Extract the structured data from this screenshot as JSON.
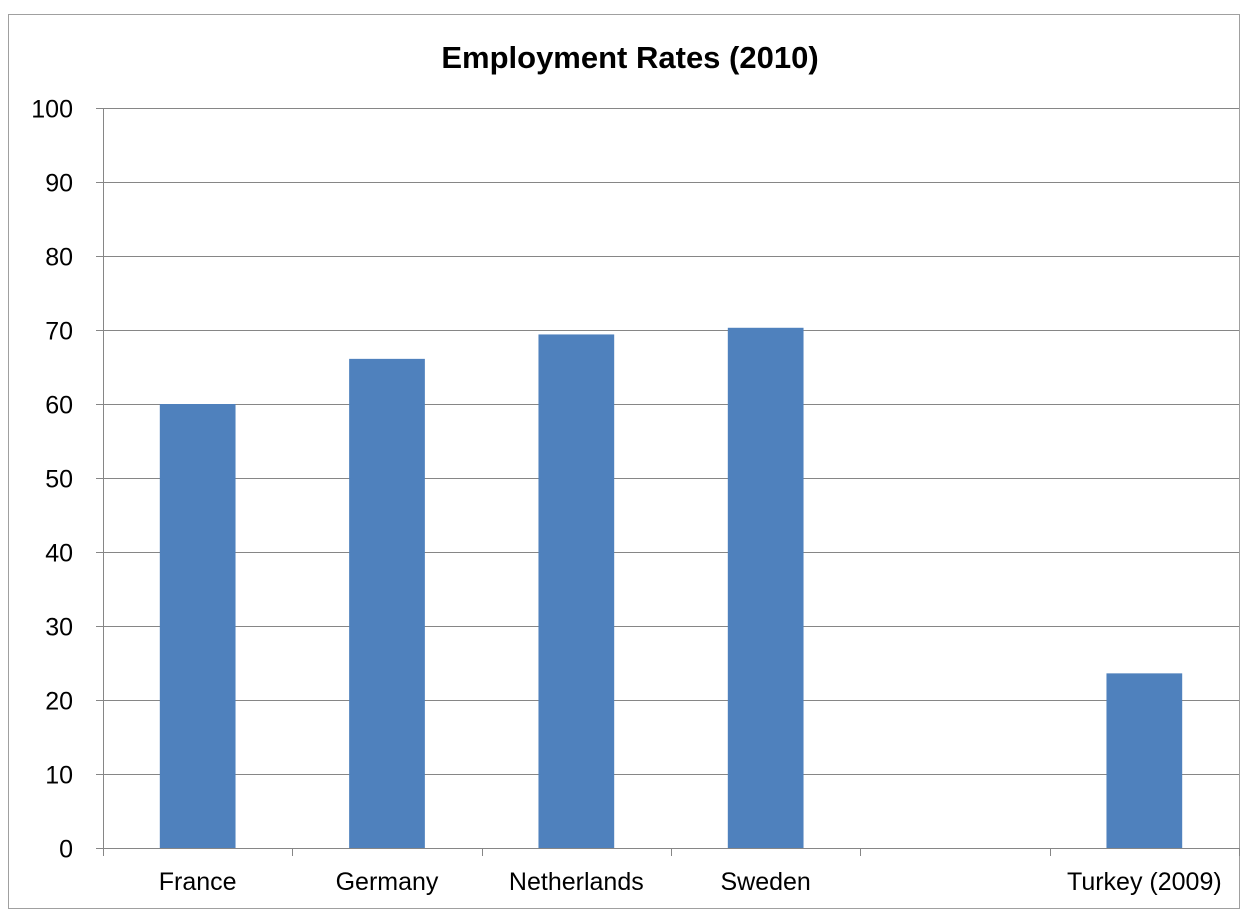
{
  "chart_data": {
    "type": "bar",
    "title": "Employment Rates (2010)",
    "xlabel": "",
    "ylabel": "",
    "categories": [
      "France",
      "Germany",
      "Netherlands",
      "Sweden",
      "",
      "Turkey (2009)"
    ],
    "values": [
      60,
      66.1,
      69.4,
      70.3,
      null,
      23.6
    ],
    "ylim": [
      0,
      100
    ],
    "yticks": [
      0,
      10,
      20,
      30,
      40,
      50,
      60,
      70,
      80,
      90,
      100
    ],
    "grid": true,
    "legend": "none",
    "bar_color": "#4f81bd"
  }
}
